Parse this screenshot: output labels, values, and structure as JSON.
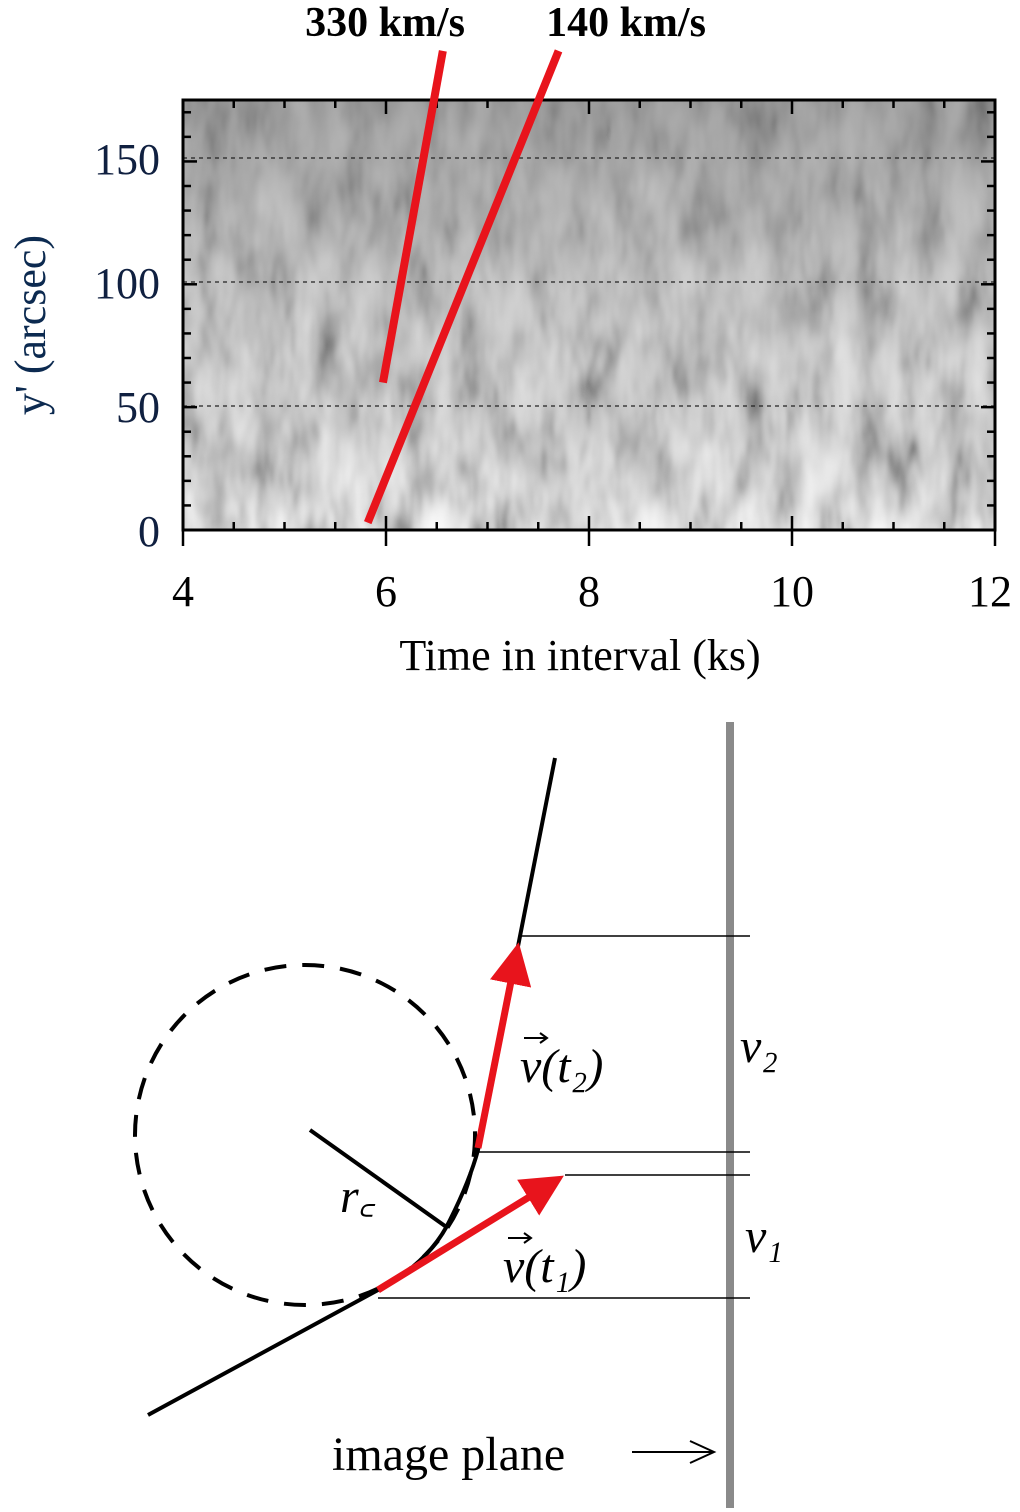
{
  "chart_data": {
    "type": "image-plot",
    "title": "",
    "xlabel": "Time in interval (ks)",
    "ylabel": "y' (arcsec)",
    "xlim": [
      4,
      12
    ],
    "ylim": [
      0,
      175
    ],
    "xticks": [
      "4",
      "6",
      "8",
      "10",
      "12"
    ],
    "yticks": [
      "0",
      "50",
      "100",
      "150"
    ],
    "grid": "dashed horizontal at 50, 100, 150",
    "series": [
      {
        "name": "330 km/s",
        "color": "#e8141c",
        "points": [
          [
            5.97,
            60
          ],
          [
            6.56,
            195
          ]
        ]
      },
      {
        "name": "140 km/s",
        "color": "#e8141c",
        "points": [
          [
            5.82,
            3
          ],
          [
            7.7,
            195
          ]
        ]
      }
    ]
  },
  "diagram": {
    "labels": {
      "v_t2": "v(t₂)",
      "v_t1": "v(t₁)",
      "v2": "v₂",
      "v1": "v₁",
      "rc": "r꜀",
      "image_plane": "image plane"
    },
    "colors": {
      "arrow": "#e8141c",
      "plane": "#8a8a8a",
      "line": "#000000"
    }
  }
}
